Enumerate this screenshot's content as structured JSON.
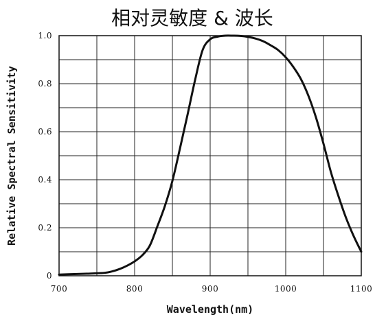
{
  "chart_data": {
    "type": "line",
    "title": "相对灵敏度 & 波长",
    "xlabel": "Wavelength(nm)",
    "ylabel": "Relative Spectral Sensitivity",
    "xlim": [
      700,
      1100
    ],
    "ylim": [
      0,
      1.0
    ],
    "x_ticks": [
      700,
      800,
      900,
      1000,
      1100
    ],
    "x_tick_labels": [
      "700",
      "800",
      "900",
      "1000",
      "1100"
    ],
    "y_ticks": [
      0,
      0.2,
      0.4,
      0.6,
      0.8,
      1.0
    ],
    "y_tick_labels": [
      "0",
      "0.2",
      "0.4",
      "0.6",
      "0.8",
      "1.0"
    ],
    "grid": true,
    "series": [
      {
        "x": [
          700,
          720,
          740,
          760,
          770,
          780,
          790,
          800,
          810,
          820,
          830,
          840,
          850,
          860,
          870,
          880,
          890,
          900,
          910,
          920,
          930,
          940,
          950,
          960,
          970,
          980,
          990,
          1000,
          1010,
          1020,
          1030,
          1040,
          1050,
          1060,
          1070,
          1080,
          1090,
          1100
        ],
        "y": [
          0.005,
          0.007,
          0.009,
          0.012,
          0.018,
          0.028,
          0.042,
          0.06,
          0.085,
          0.125,
          0.205,
          0.29,
          0.395,
          0.53,
          0.67,
          0.815,
          0.94,
          0.985,
          0.996,
          1.0,
          1.0,
          0.999,
          0.995,
          0.988,
          0.977,
          0.96,
          0.94,
          0.91,
          0.87,
          0.82,
          0.75,
          0.66,
          0.55,
          0.43,
          0.33,
          0.24,
          0.165,
          0.1
        ]
      }
    ],
    "colors": {
      "line": "#111111",
      "grid": "#222222",
      "frame": "#111111"
    }
  }
}
